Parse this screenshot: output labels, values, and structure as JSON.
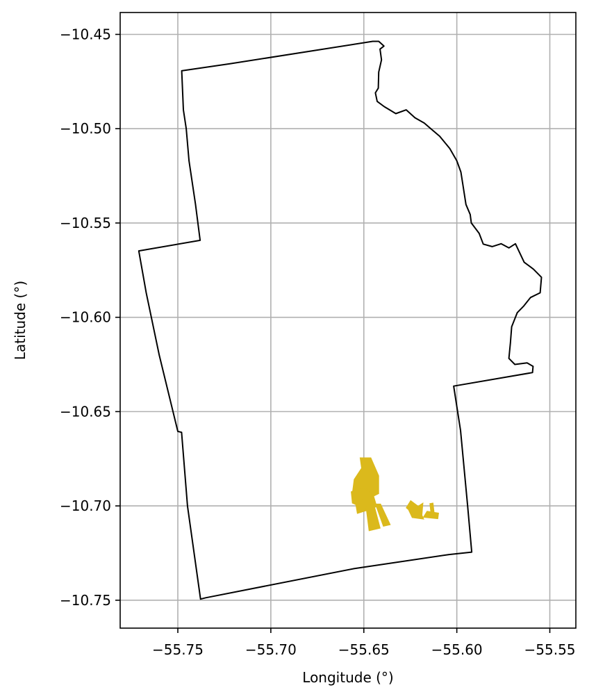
{
  "chart_data": {
    "type": "map",
    "xlabel": "Longitude (°)",
    "ylabel": "Latitude (°)",
    "xlim": [
      -55.781,
      -55.536
    ],
    "ylim": [
      -10.7648,
      -10.4384
    ],
    "grid": true,
    "x_ticks": [
      {
        "value": -55.75,
        "label": "−55.75"
      },
      {
        "value": -55.7,
        "label": "−55.70"
      },
      {
        "value": -55.65,
        "label": "−55.65"
      },
      {
        "value": -55.6,
        "label": "−55.60"
      },
      {
        "value": -55.55,
        "label": "−55.55"
      }
    ],
    "y_ticks": [
      {
        "value": -10.45,
        "label": "−10.45"
      },
      {
        "value": -10.5,
        "label": "−10.50"
      },
      {
        "value": -10.55,
        "label": "−10.55"
      },
      {
        "value": -10.6,
        "label": "−10.60"
      },
      {
        "value": -10.65,
        "label": "−10.65"
      },
      {
        "value": -10.7,
        "label": "−10.70"
      },
      {
        "value": -10.75,
        "label": "−10.75"
      }
    ],
    "boundary": {
      "color": "#000000",
      "points": [
        [
          -55.7479,
          -10.4693
        ],
        [
          -55.722,
          -10.4656
        ],
        [
          -55.6452,
          -10.4537
        ],
        [
          -55.642,
          -10.4537
        ],
        [
          -55.6392,
          -10.4562
        ],
        [
          -55.6413,
          -10.4578
        ],
        [
          -55.6405,
          -10.4635
        ],
        [
          -55.642,
          -10.47
        ],
        [
          -55.6422,
          -10.4785
        ],
        [
          -55.6438,
          -10.481
        ],
        [
          -55.6428,
          -10.4855
        ],
        [
          -55.639,
          -10.4883
        ],
        [
          -55.6365,
          -10.4898
        ],
        [
          -55.6328,
          -10.492
        ],
        [
          -55.6272,
          -10.49
        ],
        [
          -55.6225,
          -10.4942
        ],
        [
          -55.6175,
          -10.497
        ],
        [
          -55.614,
          -10.5
        ],
        [
          -55.6092,
          -10.504
        ],
        [
          -55.6038,
          -10.5105
        ],
        [
          -55.6,
          -10.517
        ],
        [
          -55.5978,
          -10.523
        ],
        [
          -55.5966,
          -10.5305
        ],
        [
          -55.5951,
          -10.5402
        ],
        [
          -55.5928,
          -10.5455
        ],
        [
          -55.5922,
          -10.55
        ],
        [
          -55.588,
          -10.5555
        ],
        [
          -55.5858,
          -10.5612
        ],
        [
          -55.581,
          -10.5625
        ],
        [
          -55.5762,
          -10.561
        ],
        [
          -55.572,
          -10.5632
        ],
        [
          -55.5685,
          -10.561
        ],
        [
          -55.5638,
          -10.5708
        ],
        [
          -55.5588,
          -10.5745
        ],
        [
          -55.5545,
          -10.5788
        ],
        [
          -55.5552,
          -10.587
        ],
        [
          -55.5604,
          -10.5895
        ],
        [
          -55.564,
          -10.594
        ],
        [
          -55.5675,
          -10.5975
        ],
        [
          -55.5705,
          -10.605
        ],
        [
          -55.5712,
          -10.6135
        ],
        [
          -55.572,
          -10.6218
        ],
        [
          -55.5688,
          -10.625
        ],
        [
          -55.5622,
          -10.6242
        ],
        [
          -55.559,
          -10.626
        ],
        [
          -55.5593,
          -10.6293
        ],
        [
          -55.6017,
          -10.6365
        ],
        [
          -55.598,
          -10.66
        ],
        [
          -55.5942,
          -10.7
        ],
        [
          -55.592,
          -10.7245
        ],
        [
          -55.6042,
          -10.7258
        ],
        [
          -55.655,
          -10.7332
        ],
        [
          -55.735,
          -10.7487
        ],
        [
          -55.7378,
          -10.7494
        ],
        [
          -55.7448,
          -10.7
        ],
        [
          -55.748,
          -10.661
        ],
        [
          -55.75,
          -10.6605
        ],
        [
          -55.76,
          -10.62
        ],
        [
          -55.767,
          -10.587
        ],
        [
          -55.771,
          -10.5648
        ],
        [
          -55.738,
          -10.5592
        ],
        [
          -55.7405,
          -10.54
        ],
        [
          -55.744,
          -10.517
        ],
        [
          -55.7455,
          -10.5
        ],
        [
          -55.747,
          -10.49
        ],
        [
          -55.7479,
          -10.4693
        ]
      ]
    },
    "features": {
      "color": "#dbb91c",
      "polygons": [
        [
          [
            -55.652,
            -10.6745
          ],
          [
            -55.6462,
            -10.6745
          ],
          [
            -55.642,
            -10.684
          ],
          [
            -55.642,
            -10.6935
          ],
          [
            -55.6492,
            -10.697
          ],
          [
            -55.6562,
            -10.6935
          ],
          [
            -55.6552,
            -10.686
          ],
          [
            -55.6512,
            -10.68
          ]
        ],
        [
          [
            -55.6568,
            -10.6925
          ],
          [
            -55.6502,
            -10.69
          ],
          [
            -55.6448,
            -10.6945
          ],
          [
            -55.643,
            -10.7005
          ],
          [
            -55.6495,
            -10.7015
          ],
          [
            -55.6562,
            -10.6985
          ]
        ],
        [
          [
            -55.6548,
            -10.6965
          ],
          [
            -55.649,
            -10.696
          ],
          [
            -55.647,
            -10.702
          ],
          [
            -55.6535,
            -10.704
          ]
        ],
        [
          [
            -55.649,
            -10.699
          ],
          [
            -55.6445,
            -10.6995
          ],
          [
            -55.6412,
            -10.7118
          ],
          [
            -55.6472,
            -10.7132
          ]
        ],
        [
          [
            -55.6438,
            -10.699
          ],
          [
            -55.641,
            -10.699
          ],
          [
            -55.6358,
            -10.71
          ],
          [
            -55.6395,
            -10.7108
          ]
        ],
        [
          [
            -55.6272,
            -10.701
          ],
          [
            -55.6248,
            -10.6972
          ],
          [
            -55.621,
            -10.7
          ],
          [
            -55.6178,
            -10.707
          ],
          [
            -55.624,
            -10.7062
          ],
          [
            -55.626,
            -10.702
          ]
        ],
        [
          [
            -55.6205,
            -10.7
          ],
          [
            -55.6182,
            -10.6985
          ],
          [
            -55.6188,
            -10.7055
          ],
          [
            -55.621,
            -10.7045
          ]
        ],
        [
          [
            -55.616,
            -10.7028
          ],
          [
            -55.6098,
            -10.7038
          ],
          [
            -55.6102,
            -10.7068
          ],
          [
            -55.618,
            -10.706
          ]
        ],
        [
          [
            -55.6145,
            -10.6988
          ],
          [
            -55.6128,
            -10.6985
          ],
          [
            -55.6122,
            -10.7035
          ],
          [
            -55.614,
            -10.7035
          ]
        ]
      ]
    }
  }
}
